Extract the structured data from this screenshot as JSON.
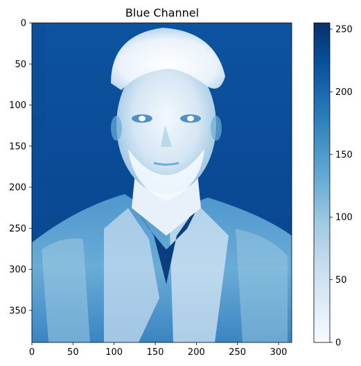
{
  "chart_data": {
    "type": "heatmap",
    "title": "Blue Channel",
    "xlabel": "",
    "ylabel": "",
    "colormap": "Blues",
    "colormap_stops": [
      "#f7fbff",
      "#deebf7",
      "#c6dbef",
      "#9ecae1",
      "#6baed6",
      "#4292c6",
      "#2171b5",
      "#08519c",
      "#08306b"
    ],
    "image_width": 316,
    "image_height": 389,
    "xlim": [
      0,
      316
    ],
    "ylim": [
      389,
      0
    ],
    "x_ticks": [
      0,
      50,
      100,
      150,
      200,
      250,
      300
    ],
    "y_ticks": [
      0,
      50,
      100,
      150,
      200,
      250,
      300,
      350
    ],
    "colorbar": {
      "range": [
        0,
        255
      ],
      "ticks": [
        0,
        50,
        100,
        150,
        200,
        250
      ]
    },
    "grid": false,
    "image_content": "portrait photograph shown as single-channel intensity: face, hair and shirt highlights at low values (light), background and shadows at high values (dark blue)"
  }
}
